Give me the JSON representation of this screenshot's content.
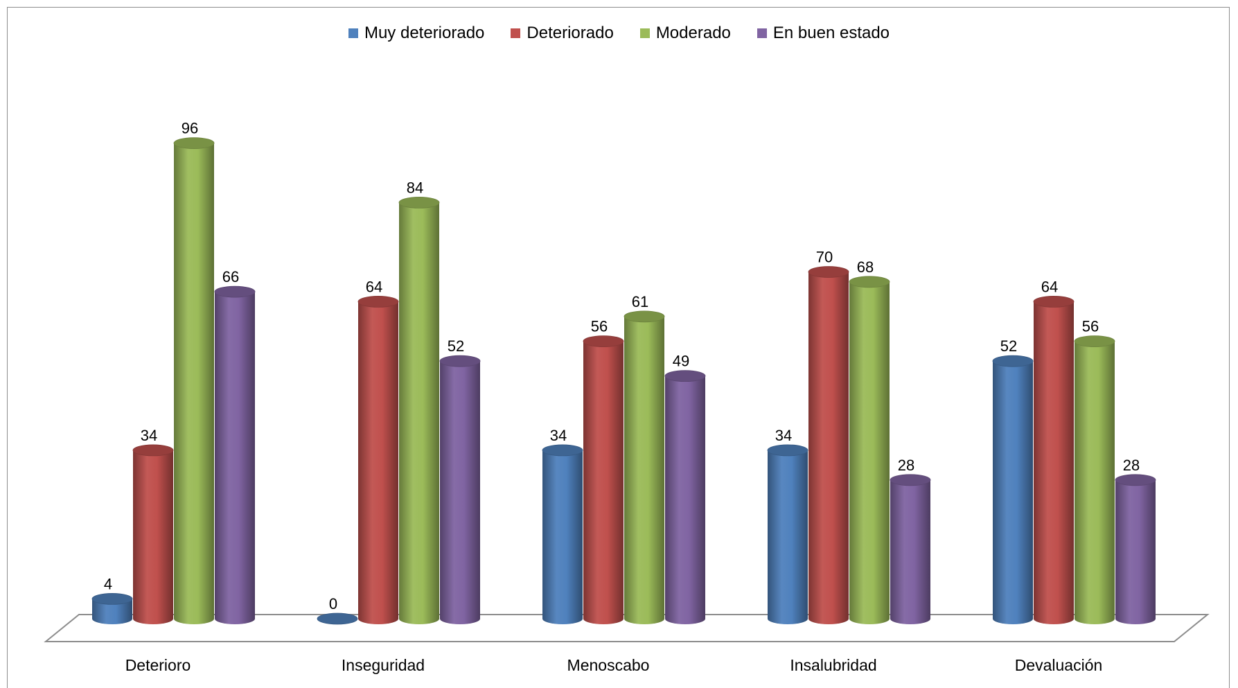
{
  "chart_data": {
    "type": "bar",
    "categories": [
      "Deterioro",
      "Inseguridad",
      "Menoscabo",
      "Insalubridad",
      "Devaluación"
    ],
    "series": [
      {
        "name": "Muy deteriorado",
        "color": "#4F81BD",
        "values": [
          4,
          0,
          34,
          34,
          52
        ]
      },
      {
        "name": "Deteriorado",
        "color": "#C0504D",
        "values": [
          34,
          64,
          56,
          70,
          64
        ]
      },
      {
        "name": "Moderado",
        "color": "#9BBB59",
        "values": [
          96,
          84,
          61,
          68,
          56
        ]
      },
      {
        "name": "En buen estado",
        "color": "#8064A2",
        "values": [
          66,
          52,
          49,
          28,
          28
        ]
      }
    ],
    "ylim": [
      0,
      100
    ],
    "legend_position": "top",
    "grid": false,
    "style": "3d-cylinder"
  }
}
